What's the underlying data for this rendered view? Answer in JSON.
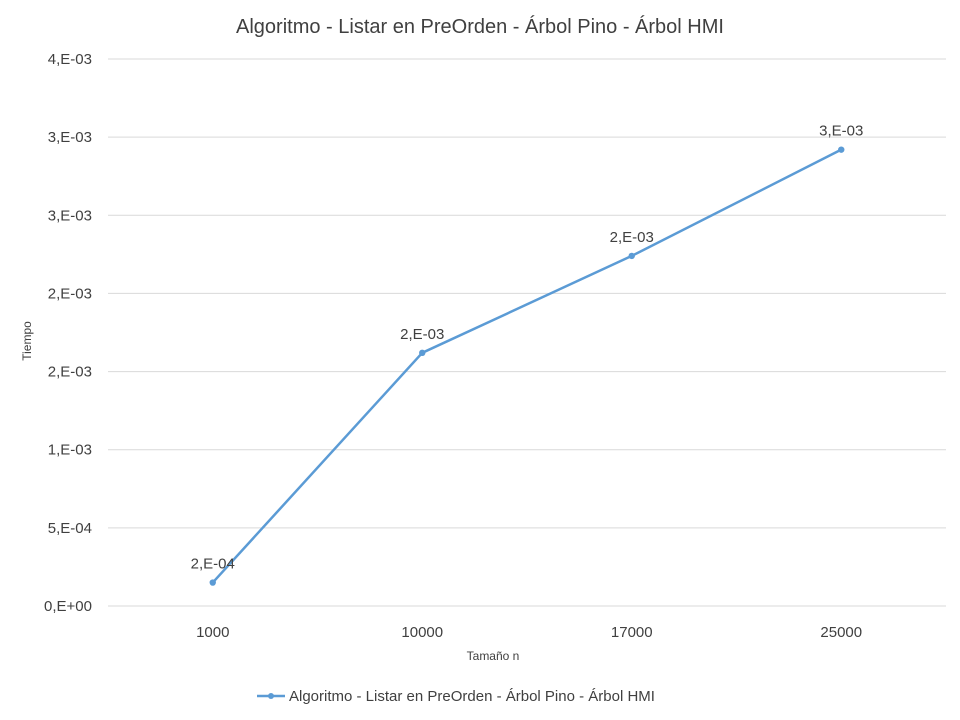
{
  "chart_data": {
    "type": "line",
    "title": "Algoritmo - Listar en PreOrden - Árbol Pino - Árbol HMI",
    "xlabel": "Tamaño n",
    "ylabel": "Tiempo",
    "categories": [
      "1000",
      "10000",
      "17000",
      "25000"
    ],
    "series": [
      {
        "name": "Algoritmo - Listar en PreOrden - Árbol Pino - Árbol HMI",
        "values": [
          0.00015,
          0.00162,
          0.00224,
          0.00292
        ],
        "data_labels": [
          "2,E-04",
          "2,E-03",
          "2,E-03",
          "3,E-03"
        ],
        "color": "#5b9bd5"
      }
    ],
    "ylim": [
      0,
      0.0035
    ],
    "yticks": [
      0,
      0.0005,
      0.001,
      0.0015,
      0.002,
      0.0025,
      0.003,
      0.0035
    ],
    "ytick_labels": [
      "0,E+00",
      "5,E-04",
      "1,E-03",
      "2,E-03",
      "2,E-03",
      "3,E-03",
      "3,E-03",
      "4,E-03"
    ],
    "grid": true,
    "legend_position": "bottom"
  }
}
